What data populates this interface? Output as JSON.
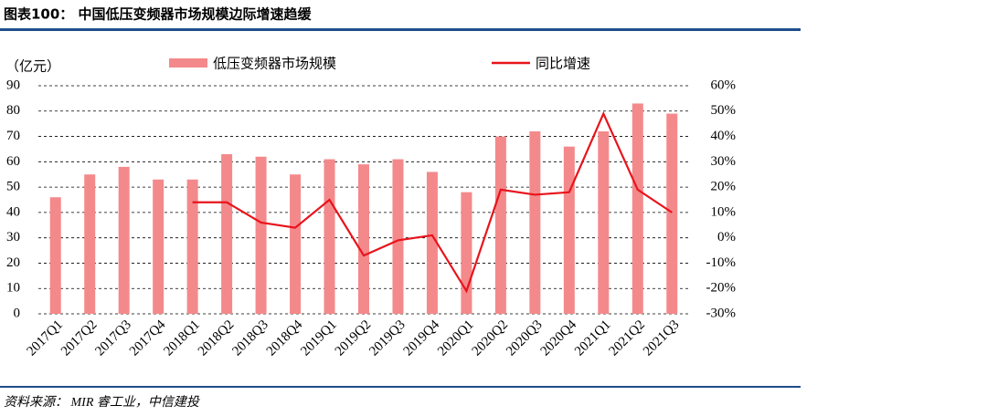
{
  "chart_data": {
    "type": "bar_line",
    "title": "图表100： 中国低压变频器市场规模边际增速趋缓",
    "y_axis_label": "（亿元）",
    "source": "资料来源： MIR 睿工业，中信建投",
    "categories": [
      "2017Q1",
      "2017Q2",
      "2017Q3",
      "2017Q4",
      "2018Q1",
      "2018Q2",
      "2018Q3",
      "2018Q4",
      "2019Q1",
      "2019Q2",
      "2019Q3",
      "2019Q4",
      "2020Q1",
      "2020Q2",
      "2020Q3",
      "2020Q4",
      "2021Q1",
      "2021Q2",
      "2021Q3"
    ],
    "series": [
      {
        "name": "低压变频器市场规模",
        "type": "bar",
        "color": "#f4898b",
        "values": [
          46,
          55,
          58,
          53,
          53,
          63,
          62,
          55,
          61,
          59,
          61,
          56,
          48,
          70,
          72,
          66,
          72,
          83,
          79
        ]
      },
      {
        "name": "同比增速",
        "type": "line",
        "axis": "y2",
        "color": "#e8141c",
        "values": [
          null,
          null,
          null,
          null,
          14,
          14,
          6,
          4,
          15,
          -7,
          -1,
          1,
          -21,
          19,
          17,
          18,
          49,
          19,
          10
        ]
      }
    ],
    "ylim": [
      0,
      90
    ],
    "yticks": [
      0,
      10,
      20,
      30,
      40,
      50,
      60,
      70,
      80,
      90
    ],
    "y2lim": [
      -30,
      60
    ],
    "y2ticks": [
      {
        "value": -30,
        "label": "-30%"
      },
      {
        "value": -20,
        "label": "-20%"
      },
      {
        "value": -10,
        "label": "-10%"
      },
      {
        "value": 0,
        "label": "0%"
      },
      {
        "value": 10,
        "label": "10%"
      },
      {
        "value": 20,
        "label": "20%"
      },
      {
        "value": 30,
        "label": "30%"
      },
      {
        "value": 40,
        "label": "40%"
      },
      {
        "value": 50,
        "label": "50%"
      },
      {
        "value": 60,
        "label": "60%"
      }
    ],
    "grid": true
  }
}
